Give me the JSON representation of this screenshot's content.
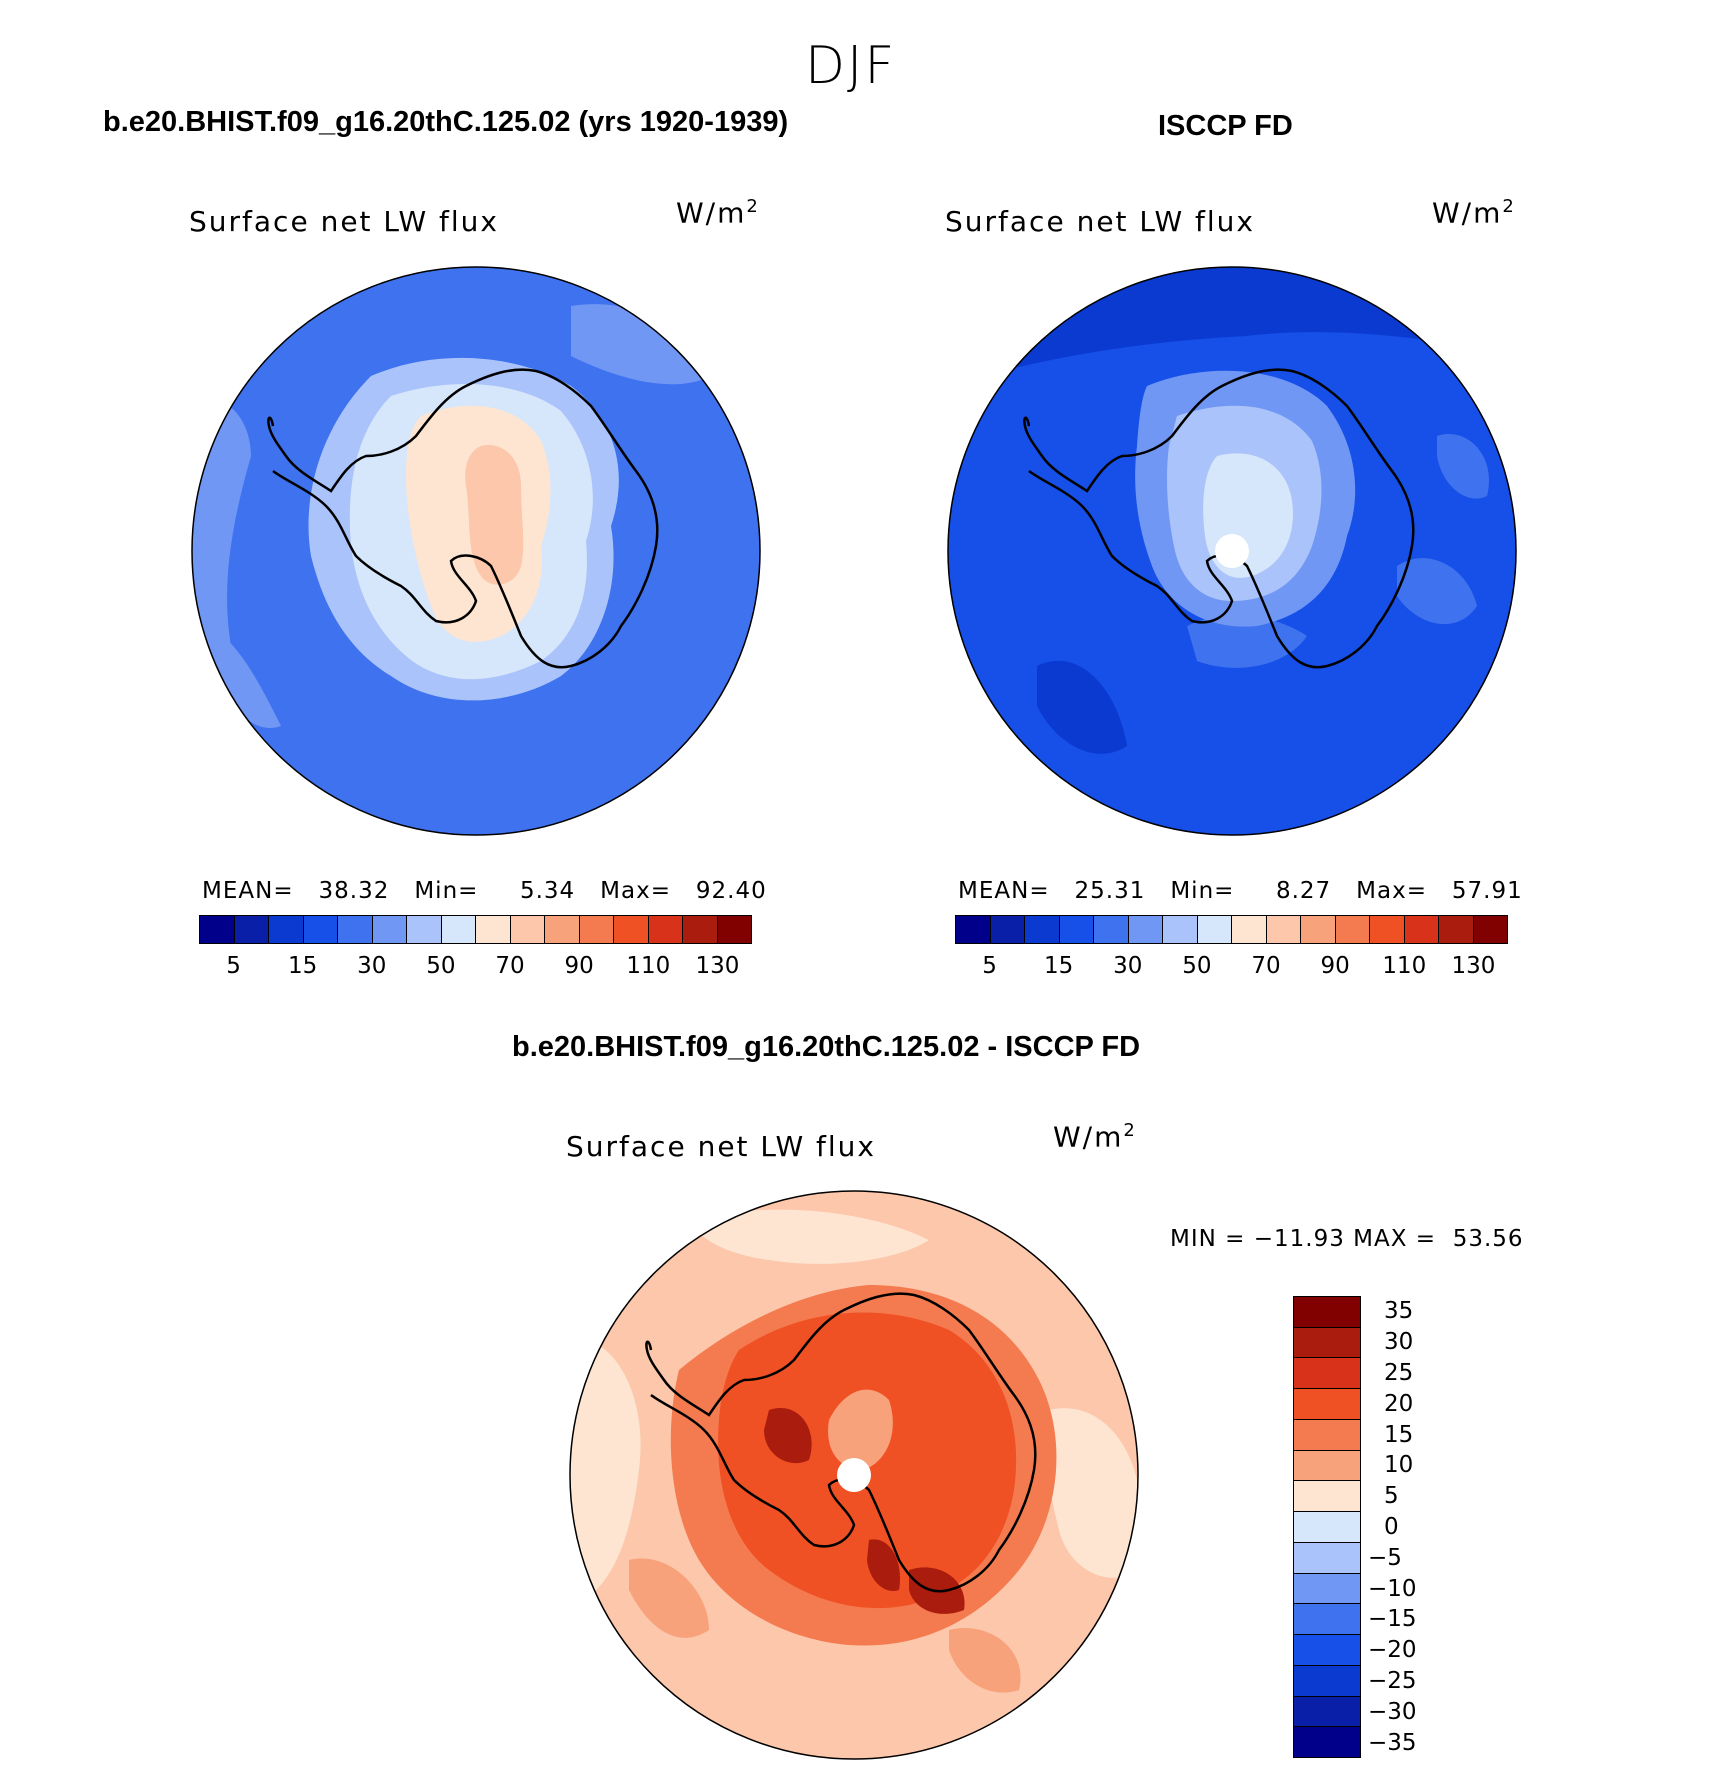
{
  "figure": {
    "season": "DJF"
  },
  "panels": [
    {
      "title": "b.e20.BHIST.f09_g16.20thC.125.02 (yrs 1920-1939)",
      "variable": "Surface net LW flux",
      "unit": "W/m",
      "unit_power": "2",
      "stats": {
        "mean_label": "MEAN=",
        "mean": "38.32",
        "min_label": "Min=",
        "min": "5.34",
        "max_label": "Max=",
        "max": "92.40"
      }
    },
    {
      "title": "ISCCP FD",
      "variable": "Surface net LW flux",
      "unit": "W/m",
      "unit_power": "2",
      "stats": {
        "mean_label": "MEAN=",
        "mean": "25.31",
        "min_label": "Min=",
        "min": "8.27",
        "max_label": "Max=",
        "max": "57.91"
      }
    },
    {
      "title": "b.e20.BHIST.f09_g16.20thC.125.02 - ISCCP FD",
      "variable": "Surface net LW flux",
      "unit": "W/m",
      "unit_power": "2",
      "stats_text": "MIN = −11.93 MAX =  53.56"
    }
  ],
  "colorbar_abs": {
    "colors": [
      "#00008b",
      "#0a1fa8",
      "#0b3ad0",
      "#1650e8",
      "#3f72ee",
      "#7197f5",
      "#aac3fa",
      "#d6e6fb",
      "#fde5d2",
      "#fcc7aa",
      "#f8a27c",
      "#f47a4f",
      "#f05124",
      "#d8331a",
      "#aa1c0d",
      "#810000"
    ],
    "tick_labels": [
      "5",
      "15",
      "30",
      "50",
      "70",
      "90",
      "110",
      "130"
    ]
  },
  "colorbar_diff": {
    "colors": [
      "#810000",
      "#aa1c0d",
      "#d8331a",
      "#f05124",
      "#f47a4f",
      "#f8a27c",
      "#fde5d2",
      "#d6e6fb",
      "#aac3fa",
      "#7197f5",
      "#3f72ee",
      "#1650e8",
      "#0b3ad0",
      "#0a1fa8",
      "#00008b"
    ],
    "tick_labels": [
      "35",
      "30",
      "25",
      "20",
      "15",
      "10",
      "5",
      "0",
      "−5",
      "−10",
      "−15",
      "−20",
      "−25",
      "−30",
      "−35"
    ]
  }
}
